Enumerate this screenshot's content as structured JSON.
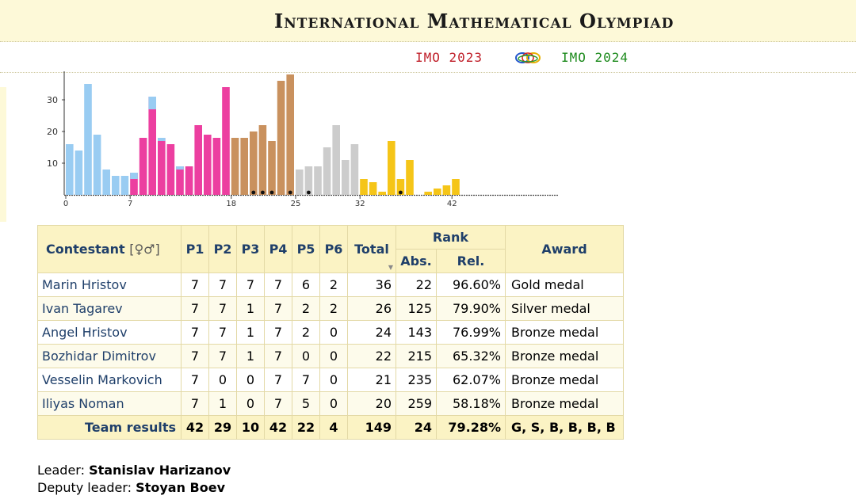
{
  "site": {
    "title": "International Mathematical Olympiad",
    "prev_link": "IMO 2023",
    "next_link": "IMO 2024",
    "logo_icon": "imo-rings-logo"
  },
  "chart_data": {
    "type": "bar",
    "xlim": [
      0,
      48
    ],
    "ylim": [
      0,
      42
    ],
    "y_ticks": [
      "10",
      "20",
      "30"
    ],
    "x_ticks": [
      "0",
      "7",
      "18",
      "25",
      "32",
      "42"
    ],
    "colors": {
      "lightblue": "#99ccf2",
      "pink": "#ec3fa0",
      "brown": "#c9915e",
      "gray": "#cccccc",
      "yellow": "#f5c518"
    },
    "bars": [
      {
        "x": 0,
        "value": 16,
        "color": "lightblue"
      },
      {
        "x": 1,
        "value": 14,
        "color": "lightblue"
      },
      {
        "x": 2,
        "value": 35,
        "color": "lightblue"
      },
      {
        "x": 3,
        "value": 19,
        "color": "lightblue"
      },
      {
        "x": 4,
        "value": 8,
        "color": "lightblue"
      },
      {
        "x": 5,
        "value": 6,
        "color": "lightblue"
      },
      {
        "x": 6,
        "value": 6,
        "color": "lightblue"
      },
      {
        "x": 7,
        "value": 7,
        "color": "pink",
        "overlay": 5
      },
      {
        "x": 8,
        "value": 18,
        "color": "pink"
      },
      {
        "x": 9,
        "value": 31,
        "color": "pink",
        "overlay": 27
      },
      {
        "x": 10,
        "value": 18,
        "color": "pink",
        "overlay": 17
      },
      {
        "x": 11,
        "value": 16,
        "color": "pink"
      },
      {
        "x": 12,
        "value": 9,
        "color": "pink",
        "overlay": 8
      },
      {
        "x": 13,
        "value": 9,
        "color": "pink"
      },
      {
        "x": 14,
        "value": 22,
        "color": "pink"
      },
      {
        "x": 15,
        "value": 19,
        "color": "pink"
      },
      {
        "x": 16,
        "value": 18,
        "color": "pink"
      },
      {
        "x": 17,
        "value": 34,
        "color": "pink"
      },
      {
        "x": 18,
        "value": 18,
        "color": "brown"
      },
      {
        "x": 19,
        "value": 18,
        "color": "brown"
      },
      {
        "x": 20,
        "value": 20,
        "color": "brown",
        "dot": true
      },
      {
        "x": 21,
        "value": 22,
        "color": "brown",
        "dot": true
      },
      {
        "x": 22,
        "value": 17,
        "color": "brown",
        "dot": true
      },
      {
        "x": 23,
        "value": 36,
        "color": "brown"
      },
      {
        "x": 24,
        "value": 38,
        "color": "brown",
        "dot": true
      },
      {
        "x": 25,
        "value": 8,
        "color": "gray"
      },
      {
        "x": 26,
        "value": 9,
        "color": "gray",
        "dot": true
      },
      {
        "x": 27,
        "value": 9,
        "color": "gray"
      },
      {
        "x": 28,
        "value": 15,
        "color": "gray"
      },
      {
        "x": 29,
        "value": 22,
        "color": "gray"
      },
      {
        "x": 30,
        "value": 11,
        "color": "gray"
      },
      {
        "x": 31,
        "value": 16,
        "color": "gray"
      },
      {
        "x": 32,
        "value": 5,
        "color": "yellow"
      },
      {
        "x": 33,
        "value": 4,
        "color": "yellow"
      },
      {
        "x": 34,
        "value": 1,
        "color": "yellow"
      },
      {
        "x": 35,
        "value": 17,
        "color": "yellow"
      },
      {
        "x": 36,
        "value": 5,
        "color": "yellow",
        "dot": true
      },
      {
        "x": 37,
        "value": 11,
        "color": "yellow"
      },
      {
        "x": 39,
        "value": 1,
        "color": "yellow"
      },
      {
        "x": 40,
        "value": 2,
        "color": "yellow"
      },
      {
        "x": 41,
        "value": 3,
        "color": "yellow"
      },
      {
        "x": 42,
        "value": 5,
        "color": "yellow"
      }
    ]
  },
  "table": {
    "headers": {
      "contestant": "Contestant",
      "gender_symbols": "[♀♂]",
      "problems": [
        "P1",
        "P2",
        "P3",
        "P4",
        "P5",
        "P6"
      ],
      "total": "Total",
      "rank": "Rank",
      "abs": "Abs.",
      "rel": "Rel.",
      "award": "Award"
    },
    "rows": [
      {
        "name": "Marin Hristov",
        "scores": [
          "7",
          "7",
          "7",
          "7",
          "6",
          "2"
        ],
        "total": "36",
        "abs": "22",
        "rel": "96.60%",
        "award": "Gold medal"
      },
      {
        "name": "Ivan Tagarev",
        "scores": [
          "7",
          "7",
          "1",
          "7",
          "2",
          "2"
        ],
        "total": "26",
        "abs": "125",
        "rel": "79.90%",
        "award": "Silver medal"
      },
      {
        "name": "Angel Hristov",
        "scores": [
          "7",
          "7",
          "1",
          "7",
          "2",
          "0"
        ],
        "total": "24",
        "abs": "143",
        "rel": "76.99%",
        "award": "Bronze medal"
      },
      {
        "name": "Bozhidar Dimitrov",
        "scores": [
          "7",
          "7",
          "1",
          "7",
          "0",
          "0"
        ],
        "total": "22",
        "abs": "215",
        "rel": "65.32%",
        "award": "Bronze medal"
      },
      {
        "name": "Vesselin Markovich",
        "scores": [
          "7",
          "0",
          "0",
          "7",
          "7",
          "0"
        ],
        "total": "21",
        "abs": "235",
        "rel": "62.07%",
        "award": "Bronze medal"
      },
      {
        "name": "Iliyas Noman",
        "scores": [
          "7",
          "1",
          "0",
          "7",
          "5",
          "0"
        ],
        "total": "20",
        "abs": "259",
        "rel": "58.18%",
        "award": "Bronze medal"
      }
    ],
    "team": {
      "label": "Team results",
      "scores": [
        "42",
        "29",
        "10",
        "42",
        "22",
        "4"
      ],
      "total": "149",
      "abs": "24",
      "rel": "79.28%",
      "award": "G, S, B, B, B, B"
    }
  },
  "leaders": {
    "leader_label": "Leader:",
    "leader_name": "Stanislav Harizanov",
    "deputy_label": "Deputy leader:",
    "deputy_name": "Stoyan Boev"
  }
}
